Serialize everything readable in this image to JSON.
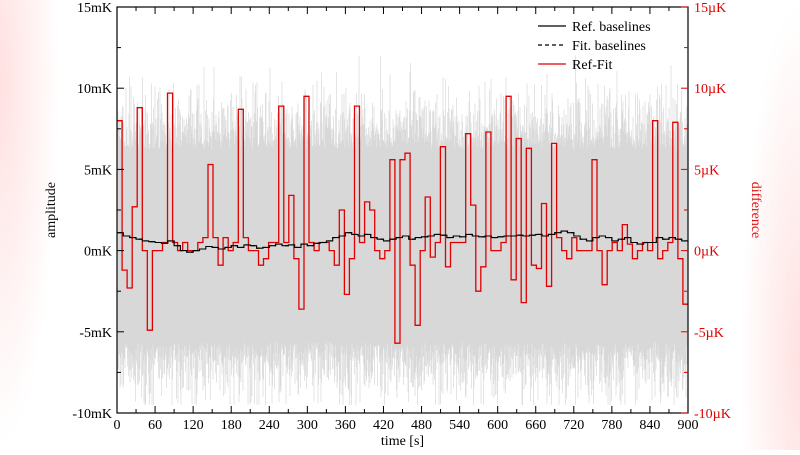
{
  "chart_data": {
    "type": "line",
    "x_axis": {
      "label": "time [s]",
      "min": 0,
      "max": 900,
      "ticks": [
        0,
        60,
        120,
        180,
        240,
        300,
        360,
        420,
        480,
        540,
        600,
        660,
        720,
        780,
        840,
        900
      ]
    },
    "y_axis_left": {
      "label": "amplitude",
      "unit": "mK",
      "min": -10,
      "max": 15,
      "ticks": [
        -10,
        -5,
        0,
        5,
        10,
        15
      ],
      "tick_labels": [
        "-10mK",
        "-5mK",
        "0mK",
        "5mK",
        "10mK",
        "15mK"
      ]
    },
    "y_axis_right": {
      "label": "difference",
      "unit": "µK",
      "color": "#e00000",
      "min": -10,
      "max": 15,
      "ticks": [
        -10,
        -5,
        0,
        5,
        10,
        15
      ],
      "tick_labels": [
        "-10µK",
        "-5µK",
        "0µK",
        "5µK",
        "10µK",
        "15µK"
      ]
    },
    "legend": {
      "position": "top-right",
      "entries": [
        {
          "label": "Ref. baselines",
          "style": "solid",
          "color": "#000000"
        },
        {
          "label": "Fit. baselines",
          "style": "dashed",
          "color": "#000000"
        },
        {
          "label": "Ref-Fit",
          "style": "solid",
          "color": "#e00000"
        }
      ]
    },
    "noise_band": {
      "color": "#d8d8d8",
      "description_mean_mK": 0.3,
      "typical_range_mK": [
        -5,
        9
      ],
      "extreme_range_mK": [
        -9.5,
        12
      ]
    },
    "series": [
      {
        "name": "Ref. baselines",
        "axis": "left",
        "style": "step",
        "color": "#000000",
        "step_width_s": 10,
        "values_mK": [
          1.1,
          0.9,
          0.8,
          0.7,
          0.6,
          0.55,
          0.5,
          0.45,
          0.6,
          0.3,
          0.0,
          -0.1,
          0.0,
          0.1,
          0.25,
          0.2,
          0.1,
          0.2,
          0.3,
          0.2,
          0.35,
          0.3,
          0.15,
          0.2,
          0.3,
          0.4,
          0.3,
          0.35,
          0.2,
          0.4,
          0.3,
          0.45,
          0.5,
          0.6,
          0.8,
          0.9,
          1.1,
          1.0,
          0.9,
          1.0,
          0.8,
          0.7,
          0.6,
          0.7,
          0.8,
          0.9,
          0.7,
          0.8,
          0.85,
          0.9,
          1.0,
          0.95,
          0.8,
          0.9,
          0.85,
          1.0,
          0.9,
          0.85,
          0.9,
          0.8,
          0.85,
          0.9,
          0.9,
          0.95,
          0.9,
          0.95,
          1.0,
          0.9,
          1.0,
          1.1,
          1.2,
          1.1,
          0.9,
          0.7,
          0.6,
          0.8,
          0.9,
          0.8,
          0.6,
          0.7,
          0.8,
          0.5,
          0.4,
          0.5,
          0.5,
          0.8,
          0.7,
          0.8,
          0.7,
          0.6
        ]
      },
      {
        "name": "Fit. baselines",
        "axis": "left",
        "style": "step-dashed",
        "color": "#000000",
        "note": "visually overlaps Ref. baselines",
        "values_mK": [
          1.1,
          0.9,
          0.8,
          0.7,
          0.6,
          0.55,
          0.5,
          0.45,
          0.6,
          0.3,
          0.0,
          -0.1,
          0.0,
          0.1,
          0.25,
          0.2,
          0.1,
          0.2,
          0.3,
          0.2,
          0.35,
          0.3,
          0.15,
          0.2,
          0.3,
          0.4,
          0.3,
          0.35,
          0.2,
          0.4,
          0.3,
          0.45,
          0.5,
          0.6,
          0.8,
          0.9,
          1.1,
          1.0,
          0.9,
          1.0,
          0.8,
          0.7,
          0.6,
          0.7,
          0.8,
          0.9,
          0.7,
          0.8,
          0.85,
          0.9,
          1.0,
          0.95,
          0.8,
          0.9,
          0.85,
          1.0,
          0.9,
          0.85,
          0.9,
          0.8,
          0.85,
          0.9,
          0.9,
          0.95,
          0.9,
          0.95,
          1.0,
          0.9,
          1.0,
          1.1,
          1.2,
          1.1,
          0.9,
          0.7,
          0.6,
          0.8,
          0.9,
          0.8,
          0.6,
          0.7,
          0.8,
          0.5,
          0.4,
          0.5,
          0.5,
          0.8,
          0.7,
          0.8,
          0.7,
          0.6
        ]
      },
      {
        "name": "Ref-Fit",
        "axis": "right",
        "style": "step",
        "color": "#e00000",
        "step_width_s": 10,
        "values_uK": [
          8.0,
          -1.2,
          -2.3,
          2.7,
          8.8,
          0.0,
          -4.9,
          0.0,
          0.0,
          0.5,
          9.7,
          0.5,
          0.0,
          0.5,
          0.0,
          0.0,
          0.5,
          0.8,
          5.3,
          0.8,
          -0.9,
          0.8,
          0.0,
          0.5,
          8.7,
          0.8,
          0.0,
          0.0,
          -0.9,
          -0.5,
          0.5,
          0.5,
          8.9,
          0.5,
          3.4,
          -0.5,
          -3.6,
          9.5,
          0.5,
          0.0,
          0.5,
          0.5,
          0.0,
          -0.9,
          2.5,
          -2.7,
          -0.5,
          8.9,
          0.5,
          3.0,
          2.5,
          0.0,
          -0.5,
          0.0,
          5.6,
          -5.7,
          5.6,
          6.0,
          -0.9,
          -4.6,
          0.0,
          3.3,
          -0.4,
          0.5,
          6.4,
          -1.0,
          0.5,
          0.5,
          0.5,
          7.2,
          2.8,
          -2.5,
          -1.0,
          7.3,
          0.0,
          0.0,
          0.5,
          9.5,
          -1.8,
          6.9,
          -3.2,
          6.3,
          -0.9,
          -1.1,
          2.9,
          -2.2,
          6.6,
          0.8,
          0.0,
          -0.5,
          0.8,
          0.0,
          0.0,
          0.0,
          5.6,
          0.0,
          -2.1,
          0.0,
          0.5,
          0.0,
          1.6,
          0.4,
          -0.5,
          0.0,
          0.5,
          0.0,
          8.0,
          -0.5,
          0.0,
          0.5,
          7.9,
          -0.5,
          -3.3
        ]
      }
    ]
  }
}
